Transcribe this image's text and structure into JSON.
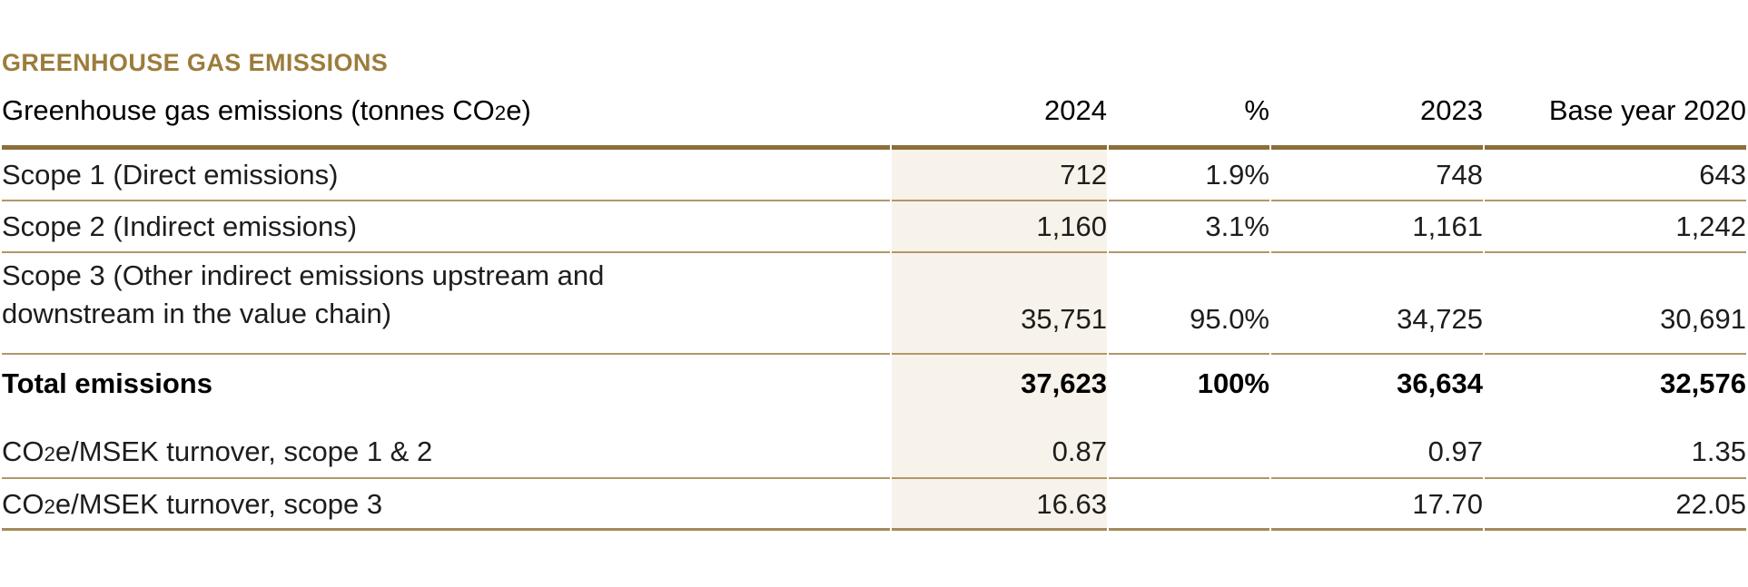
{
  "section": {
    "title": "GREENHOUSE GAS EMISSIONS"
  },
  "table": {
    "header": {
      "label_parts": [
        "Greenhouse gas emissions (tonnes CO",
        "2",
        "e)"
      ],
      "columns": [
        "2024",
        "%",
        "2023",
        "Base year 2020"
      ]
    },
    "rows": [
      {
        "label": "Scope 1 (Direct emissions)",
        "y2024": "712",
        "pct": "1.9%",
        "y2023": "748",
        "base2020": "643"
      },
      {
        "label": "Scope 2 (Indirect emissions)",
        "y2024": "1,160",
        "pct": "3.1%",
        "y2023": "1,161",
        "base2020": "1,242"
      },
      {
        "label_lines": [
          "Scope 3 (Other indirect emissions upstream and",
          "downstream in the value chain)"
        ],
        "y2024": "35,751",
        "pct": "95.0%",
        "y2023": "34,725",
        "base2020": "30,691"
      },
      {
        "label": "Total emissions",
        "y2024": "37,623",
        "pct": "100%",
        "y2023": "36,634",
        "base2020": "32,576"
      },
      {
        "label_parts": [
          "CO",
          "2",
          "e/MSEK turnover, scope 1 & 2"
        ],
        "y2024": "0.87",
        "pct": "",
        "y2023": "0.97",
        "base2020": "1.35"
      },
      {
        "label_parts": [
          "CO",
          "2",
          "e/MSEK turnover, scope 3"
        ],
        "y2024": "16.63",
        "pct": "",
        "y2023": "17.70",
        "base2020": "22.05"
      }
    ]
  },
  "colors": {
    "accent_gold_title": "#9c7c3c",
    "header_rule": "#8c6e3a",
    "row_rule": "#b39669",
    "bottom_rule": "#a5895a",
    "highlight_column_bg": "#f7f2ea",
    "text": "#1d1d1b"
  }
}
